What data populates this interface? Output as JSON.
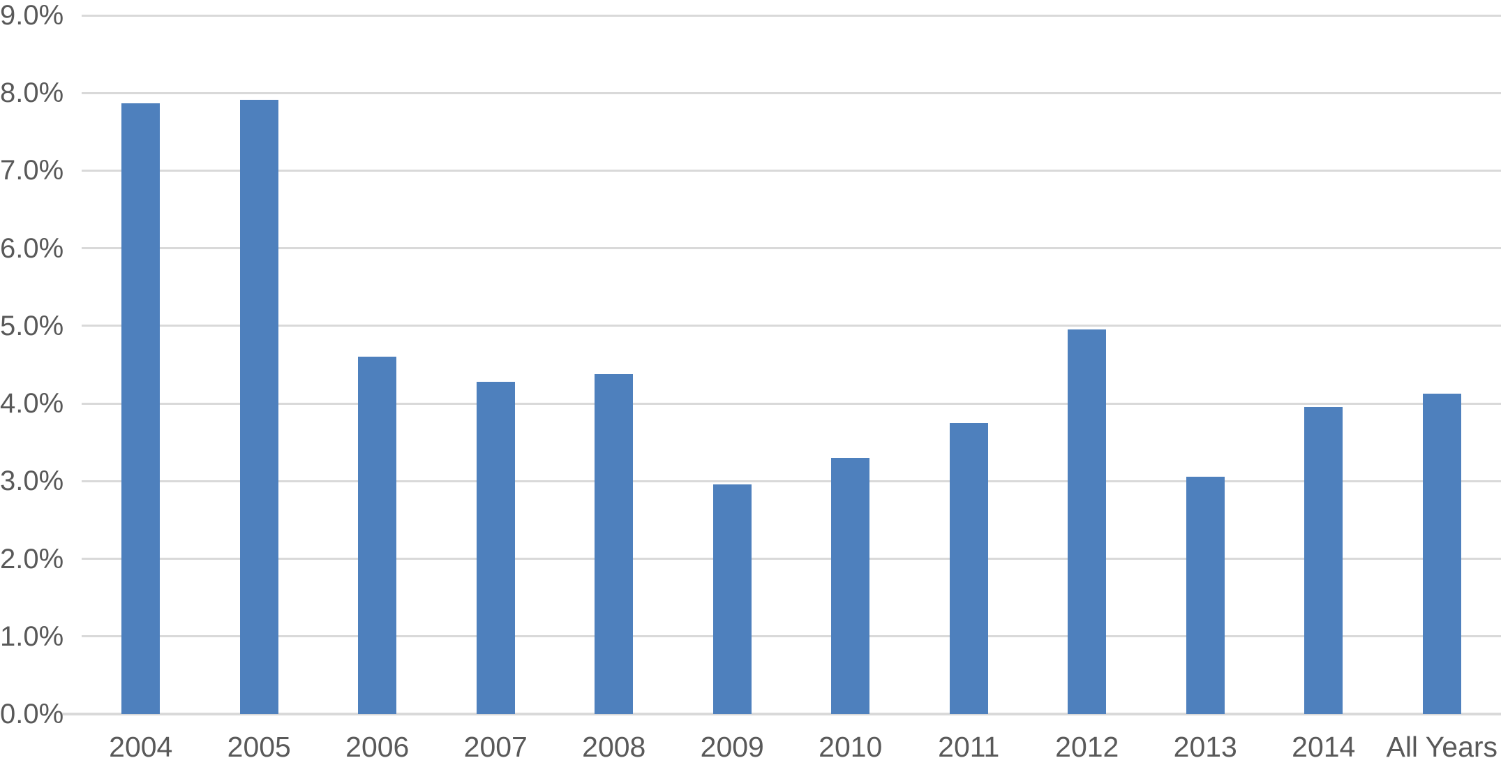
{
  "chart_data": {
    "type": "bar",
    "title": "",
    "xlabel": "",
    "ylabel": "",
    "categories": [
      "2004",
      "2005",
      "2006",
      "2007",
      "2008",
      "2009",
      "2010",
      "2011",
      "2012",
      "2013",
      "2014",
      "All Years"
    ],
    "values": [
      7.87,
      7.91,
      4.6,
      4.28,
      4.38,
      2.96,
      3.3,
      3.75,
      4.95,
      3.06,
      3.96,
      4.13
    ],
    "value_unit": "percent",
    "ylim": [
      0,
      9
    ],
    "ytick_labels_bottom_to_top": [
      "0.0%",
      "1.0%",
      "2.0%",
      "3.0%",
      "4.0%",
      "5.0%",
      "6.0%",
      "7.0%",
      "8.0%",
      "9.0%"
    ],
    "grid": "horizontal",
    "legend": "none",
    "colors": {
      "bar_fill": "#4E80BD",
      "gridline": "#D9D9D9",
      "axis_line": "#D9D9D9",
      "tick_text": "#595959"
    }
  }
}
